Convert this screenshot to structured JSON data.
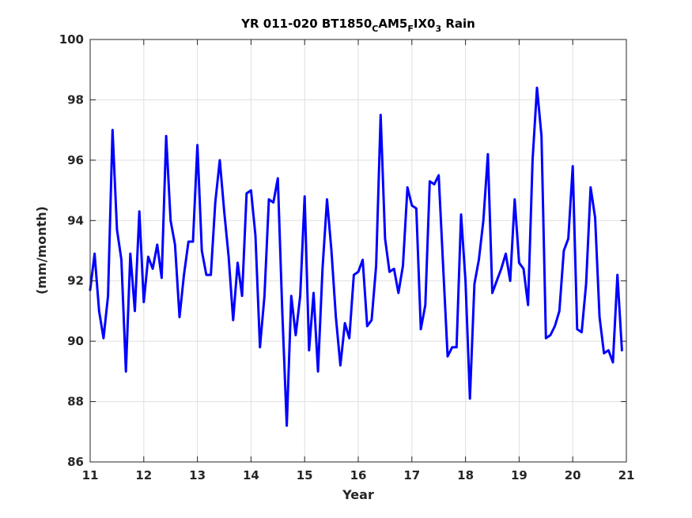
{
  "chart_data": {
    "type": "line",
    "title": {
      "parts": [
        {
          "text": "YR 011-020 BT1850",
          "sub": false
        },
        {
          "text": "C",
          "sub": true
        },
        {
          "text": "AM5",
          "sub": false
        },
        {
          "text": "F",
          "sub": true
        },
        {
          "text": "IX0",
          "sub": false
        },
        {
          "text": "3",
          "sub": true
        },
        {
          "text": " Rain",
          "sub": false
        }
      ]
    },
    "xlabel": "Year",
    "ylabel": "(mm/month)",
    "xlim": [
      11,
      21
    ],
    "ylim": [
      86,
      100
    ],
    "xticks": [
      11,
      12,
      13,
      14,
      15,
      16,
      17,
      18,
      19,
      20,
      21
    ],
    "yticks": [
      86,
      88,
      90,
      92,
      94,
      96,
      98,
      100
    ],
    "grid": true,
    "line_color": "#0000ff",
    "series": [
      {
        "x": [
          11.0,
          11.083,
          11.167,
          11.25,
          11.333,
          11.417,
          11.5,
          11.583,
          11.667,
          11.75,
          11.833,
          11.917,
          12.0,
          12.083,
          12.167,
          12.25,
          12.333,
          12.417,
          12.5,
          12.583,
          12.667,
          12.75,
          12.833,
          12.917,
          13.0,
          13.083,
          13.167,
          13.25,
          13.333,
          13.417,
          13.5,
          13.583,
          13.667,
          13.75,
          13.833,
          13.917,
          14.0,
          14.083,
          14.167,
          14.25,
          14.333,
          14.417,
          14.5,
          14.583,
          14.667,
          14.75,
          14.833,
          14.917,
          15.0,
          15.083,
          15.167,
          15.25,
          15.333,
          15.417,
          15.5,
          15.583,
          15.667,
          15.75,
          15.833,
          15.917,
          16.0,
          16.083,
          16.167,
          16.25,
          16.333,
          16.417,
          16.5,
          16.583,
          16.667,
          16.75,
          16.833,
          16.917,
          17.0,
          17.083,
          17.167,
          17.25,
          17.333,
          17.417,
          17.5,
          17.583,
          17.667,
          17.75,
          17.833,
          17.917,
          18.0,
          18.083,
          18.167,
          18.25,
          18.333,
          18.417,
          18.5,
          18.583,
          18.667,
          18.75,
          18.833,
          18.917,
          19.0,
          19.083,
          19.167,
          19.25,
          19.333,
          19.417,
          19.5,
          19.583,
          19.667,
          19.75,
          19.833,
          19.917,
          20.0,
          20.083,
          20.167,
          20.25,
          20.333,
          20.417,
          20.5,
          20.583,
          20.667,
          20.75,
          20.833,
          20.917
        ],
        "y": [
          91.7,
          92.9,
          91.0,
          90.1,
          91.5,
          97.0,
          93.7,
          92.7,
          89.0,
          92.9,
          91.0,
          94.3,
          91.3,
          92.8,
          92.4,
          93.2,
          92.1,
          96.8,
          94.0,
          93.2,
          90.8,
          92.2,
          93.3,
          93.3,
          96.5,
          93.0,
          92.2,
          92.2,
          94.6,
          96.0,
          94.3,
          92.8,
          90.7,
          92.6,
          91.5,
          94.9,
          95.0,
          93.5,
          89.8,
          91.5,
          94.7,
          94.6,
          95.4,
          91.0,
          87.2,
          91.5,
          90.2,
          91.5,
          94.8,
          89.7,
          91.6,
          89.0,
          92.4,
          94.7,
          93.0,
          90.8,
          89.2,
          90.6,
          90.1,
          92.2,
          92.3,
          92.7,
          90.5,
          90.7,
          92.5,
          97.5,
          93.4,
          92.3,
          92.4,
          91.6,
          92.5,
          95.1,
          94.5,
          94.4,
          90.4,
          91.2,
          95.3,
          95.2,
          95.5,
          92.5,
          89.5,
          89.8,
          89.8,
          94.2,
          92.0,
          88.1,
          91.9,
          92.7,
          94.0,
          96.2,
          91.6,
          92.0,
          92.4,
          92.9,
          92.0,
          94.7,
          92.6,
          92.4,
          91.2,
          96.0,
          98.4,
          96.8,
          90.1,
          90.2,
          90.5,
          91.0,
          93.0,
          93.4,
          95.8,
          90.4,
          90.3,
          91.9,
          95.1,
          94.1,
          90.8,
          89.6,
          89.7,
          89.3,
          92.2,
          89.7
        ]
      }
    ]
  }
}
